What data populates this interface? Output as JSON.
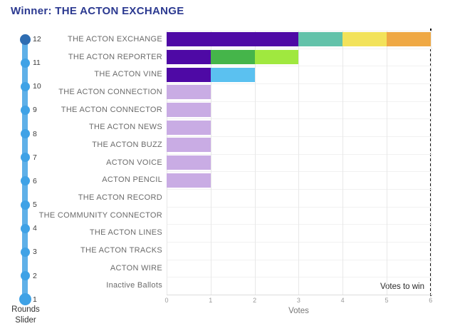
{
  "page": {
    "title": "Winner: THE ACTON EXCHANGE",
    "title_color": "#2B3990",
    "background": "#ffffff"
  },
  "slider": {
    "caption_lines": [
      "Rounds",
      "Slider"
    ],
    "rounds": [
      12,
      11,
      10,
      9,
      8,
      7,
      6,
      5,
      4,
      3,
      2,
      1
    ],
    "active_round": 12,
    "colors": {
      "track": "#5FB0E8",
      "dot": "#3FA2E6",
      "active_dot": "#2E6DB2"
    }
  },
  "chart_data": {
    "type": "bar",
    "orientation": "horizontal",
    "stacked": true,
    "title": "",
    "xlabel": "Votes",
    "ylabel": "",
    "xlim": [
      0,
      6
    ],
    "xticks": [
      0,
      1,
      2,
      3,
      4,
      5,
      6
    ],
    "grid": true,
    "legend": false,
    "votes_to_win": 6,
    "votes_to_win_label": "Votes to win",
    "categories": [
      "THE ACTON EXCHANGE",
      "THE ACTON REPORTER",
      "THE ACTON VINE",
      "THE ACTON CONNECTION",
      "THE ACTON CONNECTOR",
      "THE ACTON NEWS",
      "THE ACTON BUZZ",
      "ACTON VOICE",
      "ACTON PENCIL",
      "THE ACTON RECORD",
      "THE COMMUNITY CONNECTOR",
      "THE ACTON LINES",
      "THE ACTON TRACKS",
      "ACTON WIRE",
      "Inactive Ballots"
    ],
    "bars": [
      {
        "category": "THE ACTON EXCHANGE",
        "total": 6,
        "segments": [
          {
            "value": 3,
            "color": "#4E09A5"
          },
          {
            "value": 1,
            "color": "#62C2A9"
          },
          {
            "value": 1,
            "color": "#F2E25A"
          },
          {
            "value": 1,
            "color": "#EFA844"
          }
        ]
      },
      {
        "category": "THE ACTON REPORTER",
        "total": 3,
        "segments": [
          {
            "value": 1,
            "color": "#4E09A5"
          },
          {
            "value": 1,
            "color": "#45B54A"
          },
          {
            "value": 1,
            "color": "#A0E83F"
          }
        ]
      },
      {
        "category": "THE ACTON VINE",
        "total": 2,
        "segments": [
          {
            "value": 1,
            "color": "#4E09A5"
          },
          {
            "value": 1,
            "color": "#5BC1F0"
          }
        ]
      },
      {
        "category": "THE ACTON CONNECTION",
        "total": 1,
        "segments": [
          {
            "value": 1,
            "color": "#C9ACE4"
          }
        ]
      },
      {
        "category": "THE ACTON CONNECTOR",
        "total": 1,
        "segments": [
          {
            "value": 1,
            "color": "#C9ACE4"
          }
        ]
      },
      {
        "category": "THE ACTON NEWS",
        "total": 1,
        "segments": [
          {
            "value": 1,
            "color": "#C9ACE4"
          }
        ]
      },
      {
        "category": "THE ACTON BUZZ",
        "total": 1,
        "segments": [
          {
            "value": 1,
            "color": "#C9ACE4"
          }
        ]
      },
      {
        "category": "ACTON VOICE",
        "total": 1,
        "segments": [
          {
            "value": 1,
            "color": "#C9ACE4"
          }
        ]
      },
      {
        "category": "ACTON PENCIL",
        "total": 1,
        "segments": [
          {
            "value": 1,
            "color": "#C9ACE4"
          }
        ]
      },
      {
        "category": "THE ACTON RECORD",
        "total": 0,
        "segments": []
      },
      {
        "category": "THE COMMUNITY CONNECTOR",
        "total": 0,
        "segments": []
      },
      {
        "category": "THE ACTON LINES",
        "total": 0,
        "segments": []
      },
      {
        "category": "THE ACTON TRACKS",
        "total": 0,
        "segments": []
      },
      {
        "category": "ACTON WIRE",
        "total": 0,
        "segments": []
      },
      {
        "category": "Inactive Ballots",
        "total": 0,
        "segments": []
      }
    ]
  }
}
